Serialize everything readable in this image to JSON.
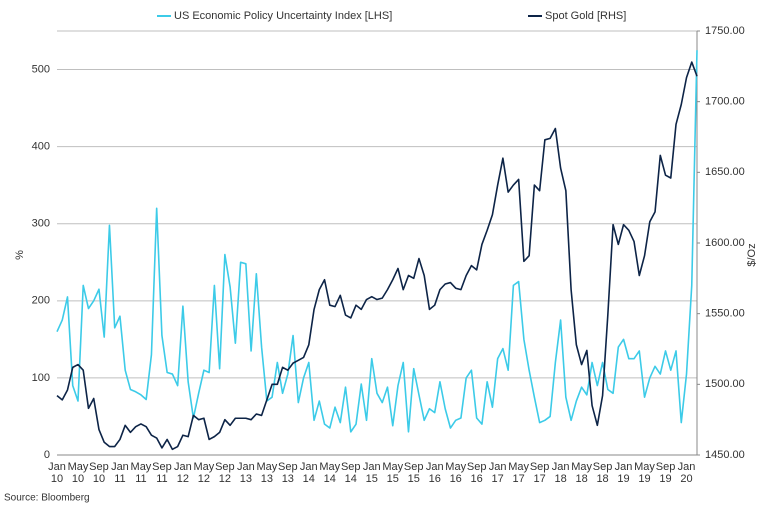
{
  "chart_data": {
    "type": "line",
    "source": "Source: Bloomberg",
    "ylabel": "%",
    "y2label": "$/Oz",
    "categories": [
      "Jan 10",
      null,
      null,
      null,
      "May 10",
      null,
      null,
      null,
      "Sep 10",
      null,
      null,
      null,
      "Jan 11",
      null,
      null,
      null,
      "May 11",
      null,
      null,
      null,
      "Sep 11",
      null,
      null,
      null,
      "Jan 12",
      null,
      null,
      null,
      "May 12",
      null,
      null,
      null,
      "Sep 12",
      null,
      null,
      null,
      "Jan 13",
      null,
      null,
      null,
      "May 13",
      null,
      null,
      null,
      "Sep 13",
      null,
      null,
      null,
      "Jan 14",
      null,
      null,
      null,
      "May 14",
      null,
      null,
      null,
      "Sep 14",
      null,
      null,
      null,
      "Jan 15",
      null,
      null,
      null,
      "May 15",
      null,
      null,
      null,
      "Sep 15",
      null,
      null,
      null,
      "Jan 16",
      null,
      null,
      null,
      "May 16",
      null,
      null,
      null,
      "Sep 16",
      null,
      null,
      null,
      "Jan 17",
      null,
      null,
      null,
      "May 17",
      null,
      null,
      null,
      "Sep 17",
      null,
      null,
      null,
      "Jan 18",
      null,
      null,
      null,
      "May 18",
      null,
      null,
      null,
      "Sep 18",
      null,
      null,
      null,
      "Jan 19",
      null,
      null,
      null,
      "May 19",
      null,
      null,
      null,
      "Sep 19",
      null,
      null,
      null,
      "Jan 20",
      null,
      null
    ],
    "series": [
      {
        "name": "US Economic Policy Uncertainty Index [LHS]",
        "color": "#3ccbe8",
        "values": [
          160,
          175,
          205,
          90,
          70,
          220,
          190,
          200,
          215,
          153,
          298,
          165,
          180,
          110,
          85,
          82,
          78,
          72,
          130,
          320,
          155,
          107,
          105,
          90,
          193,
          95,
          48,
          80,
          110,
          107,
          220,
          112,
          260,
          218,
          145,
          250,
          248,
          135,
          235,
          140,
          70,
          75,
          120,
          80,
          105,
          155,
          68,
          100,
          120,
          45,
          70,
          40,
          35,
          62,
          42,
          88,
          30,
          40,
          92,
          45,
          125,
          80,
          68,
          88,
          38,
          90,
          120,
          30,
          112,
          78,
          45,
          60,
          55,
          95,
          60,
          35,
          45,
          48,
          100,
          110,
          48,
          40,
          95,
          62,
          125,
          138,
          110,
          220,
          225,
          150,
          110,
          75,
          42,
          45,
          50,
          120,
          175,
          75,
          45,
          70,
          88,
          78,
          120,
          90,
          120,
          85,
          80,
          140,
          150,
          125,
          125,
          135,
          75,
          100,
          115,
          105,
          135,
          110,
          135,
          42,
          105,
          220,
          525
        ]
      },
      {
        "name": "Spot Gold [RHS]",
        "color": "#0d2447",
        "axis": "y2",
        "values": [
          1492,
          1489,
          1496,
          1512,
          1514,
          1510,
          1483,
          1490,
          1468,
          1459,
          1456,
          1456,
          1461,
          1471,
          1466,
          1470,
          1472,
          1470,
          1464,
          1462,
          1455,
          1461,
          1454,
          1456,
          1464,
          1463,
          1478,
          1475,
          1476,
          1461,
          1463,
          1466,
          1475,
          1471,
          1476,
          1476,
          1476,
          1475,
          1479,
          1478,
          1489,
          1500,
          1500,
          1512,
          1510,
          1515,
          1517,
          1519,
          1528,
          1553,
          1567,
          1574,
          1556,
          1555,
          1563,
          1549,
          1547,
          1556,
          1553,
          1560,
          1562,
          1560,
          1561,
          1567,
          1574,
          1582,
          1567,
          1577,
          1575,
          1589,
          1577,
          1553,
          1556,
          1567,
          1571,
          1572,
          1568,
          1567,
          1577,
          1584,
          1581,
          1599,
          1609,
          1620,
          1641,
          1660,
          1636,
          1641,
          1645,
          1587,
          1591,
          1641,
          1637,
          1673,
          1674,
          1681,
          1653,
          1637,
          1567,
          1528,
          1514,
          1524,
          1485,
          1471,
          1492,
          1549,
          1613,
          1599,
          1613,
          1609,
          1601,
          1577,
          1591,
          1615,
          1622,
          1662,
          1648,
          1646,
          1684,
          1698,
          1717,
          1728,
          1718
        ]
      }
    ],
    "ylim": [
      0,
      550
    ],
    "yticks": [
      0,
      100,
      200,
      300,
      400,
      500
    ],
    "y2lim": [
      1450,
      1750
    ],
    "y2ticks": [
      {
        "value": 1450,
        "label": "1450.00"
      },
      {
        "value": 1500,
        "label": "1500.00"
      },
      {
        "value": 1550,
        "label": "1550.00"
      },
      {
        "value": 1600,
        "label": "1600.00"
      },
      {
        "value": 1650,
        "label": "1650.00"
      },
      {
        "value": 1700,
        "label": "1700.00"
      },
      {
        "value": 1750,
        "label": "1750.00"
      }
    ],
    "grid": true
  }
}
